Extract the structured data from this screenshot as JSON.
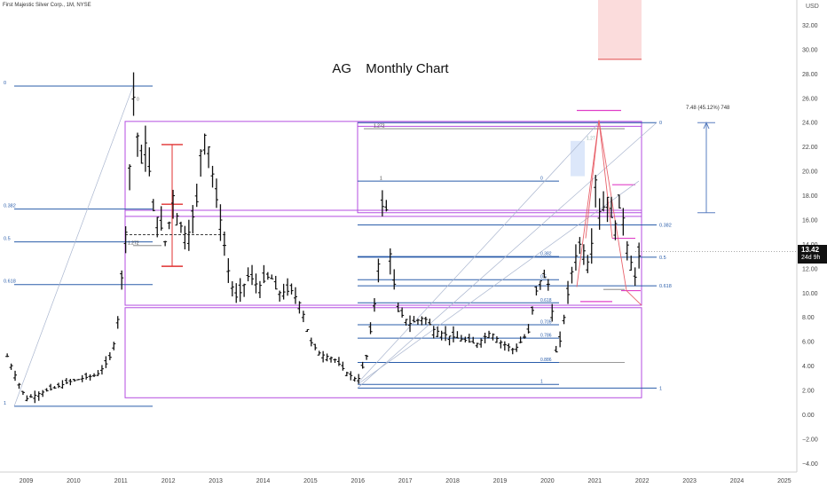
{
  "header": {
    "symbol_line": "First Majestic Silver Corp., 1M, NYSE",
    "currency": "USD"
  },
  "chart_data": {
    "type": "candlestick",
    "title": "AG",
    "subtitle": "Monthly Chart",
    "xlabel": "",
    "ylabel": "",
    "y_ticks": [
      -4,
      -2,
      0,
      2,
      4,
      6,
      8,
      10,
      12,
      14,
      16,
      18,
      20,
      22,
      24,
      26,
      28,
      30,
      32
    ],
    "y_tick_labels": [
      "−4.00",
      "−2.00",
      "0.00",
      "2.00",
      "4.00",
      "6.00",
      "8.00",
      "10.00",
      "12.00",
      "14.00",
      "16.00",
      "18.00",
      "20.00",
      "22.00",
      "24.00",
      "26.00",
      "28.00",
      "30.00",
      "32.00"
    ],
    "ylim": [
      -4.6,
      33.5
    ],
    "x_ticks": [
      "2009",
      "2010",
      "2011",
      "2012",
      "2013",
      "2014",
      "2015",
      "2016",
      "2017",
      "2018",
      "2019",
      "2020",
      "2021",
      "2022",
      "2023",
      "2024",
      "2025"
    ],
    "xlim": [
      2008.6,
      2025.6
    ],
    "last_price": "13.42",
    "countdown": "24d 9h",
    "measure_label": "7.48 (45.12%) 748",
    "price_path": [
      [
        2008.6,
        4.8
      ],
      [
        2008.85,
        2.5
      ],
      [
        2009.0,
        1.3
      ],
      [
        2009.3,
        1.8
      ],
      [
        2009.6,
        2.2
      ],
      [
        2009.9,
        2.7
      ],
      [
        2010.2,
        3.0
      ],
      [
        2010.5,
        3.3
      ],
      [
        2010.75,
        4.5
      ],
      [
        2010.9,
        6.5
      ],
      [
        2011.0,
        10.5
      ],
      [
        2011.1,
        15.0
      ],
      [
        2011.2,
        21.5
      ],
      [
        2011.28,
        27.0
      ],
      [
        2011.4,
        20.0
      ],
      [
        2011.55,
        23.0
      ],
      [
        2011.65,
        17.0
      ],
      [
        2011.8,
        16.0
      ],
      [
        2011.95,
        14.0
      ],
      [
        2012.1,
        18.0
      ],
      [
        2012.2,
        16.0
      ],
      [
        2012.4,
        14.5
      ],
      [
        2012.6,
        17.5
      ],
      [
        2012.72,
        23.5
      ],
      [
        2012.85,
        22.0
      ],
      [
        2013.0,
        18.0
      ],
      [
        2013.1,
        16.0
      ],
      [
        2013.3,
        11.0
      ],
      [
        2013.45,
        9.5
      ],
      [
        2013.7,
        11.5
      ],
      [
        2013.9,
        10.5
      ],
      [
        2014.15,
        11.5
      ],
      [
        2014.3,
        10.0
      ],
      [
        2014.6,
        10.2
      ],
      [
        2014.8,
        9.0
      ],
      [
        2015.0,
        6.0
      ],
      [
        2015.2,
        5.0
      ],
      [
        2015.5,
        4.6
      ],
      [
        2015.75,
        3.5
      ],
      [
        2016.0,
        2.8
      ],
      [
        2016.2,
        5.0
      ],
      [
        2016.4,
        10.5
      ],
      [
        2016.55,
        19.0
      ],
      [
        2016.7,
        12.5
      ],
      [
        2016.85,
        8.5
      ],
      [
        2017.1,
        7.5
      ],
      [
        2017.4,
        8.0
      ],
      [
        2017.6,
        7.0
      ],
      [
        2017.9,
        6.5
      ],
      [
        2018.2,
        6.2
      ],
      [
        2018.5,
        5.8
      ],
      [
        2018.8,
        6.8
      ],
      [
        2019.0,
        6.0
      ],
      [
        2019.3,
        5.3
      ],
      [
        2019.6,
        6.8
      ],
      [
        2019.75,
        10.0
      ],
      [
        2019.9,
        11.5
      ],
      [
        2020.05,
        10.5
      ],
      [
        2020.2,
        4.5
      ],
      [
        2020.35,
        8.0
      ],
      [
        2020.55,
        12.5
      ],
      [
        2020.7,
        14.2
      ],
      [
        2020.9,
        12.0
      ],
      [
        2021.02,
        19.5
      ],
      [
        2021.12,
        16.0
      ],
      [
        2021.25,
        18.2
      ],
      [
        2021.4,
        15.2
      ],
      [
        2021.55,
        17.5
      ],
      [
        2021.7,
        13.5
      ],
      [
        2021.85,
        11.3
      ],
      [
        2021.95,
        13.4
      ]
    ],
    "fib_levels_right": [
      {
        "ratio": "0",
        "price": 24.0
      },
      {
        "ratio": "0.382",
        "price": 15.6
      },
      {
        "ratio": "0.5",
        "price": 12.95
      },
      {
        "ratio": "0.618",
        "price": 10.6
      },
      {
        "ratio": "1",
        "price": 2.2
      }
    ],
    "fib_levels_middle": [
      {
        "ratio": "0",
        "price": 19.2
      },
      {
        "ratio": "0.382",
        "price": 13.0
      },
      {
        "ratio": "0.5",
        "price": 11.1
      },
      {
        "ratio": "0.618",
        "price": 9.2
      },
      {
        "ratio": "0.705",
        "price": 7.4
      },
      {
        "ratio": "0.786",
        "price": 6.3
      },
      {
        "ratio": "0.886",
        "price": 4.3
      },
      {
        "ratio": "1",
        "price": 2.5
      }
    ],
    "fib_levels_left": [
      {
        "ratio": "0",
        "price": 27.0
      },
      {
        "ratio": "0.382",
        "price": 16.9
      },
      {
        "ratio": "0.5",
        "price": 14.2
      },
      {
        "ratio": "0.618",
        "price": 10.7
      },
      {
        "ratio": "1",
        "price": 0.7
      }
    ],
    "extension_labels": [
      {
        "text": "1.272",
        "price": 23.5
      },
      {
        "text": "1.272",
        "price": 13.9
      },
      {
        "text": "1.27",
        "price": 22.5
      },
      {
        "text": "0",
        "price": 25.7
      },
      {
        "text": "1",
        "price": 19.2
      }
    ]
  }
}
